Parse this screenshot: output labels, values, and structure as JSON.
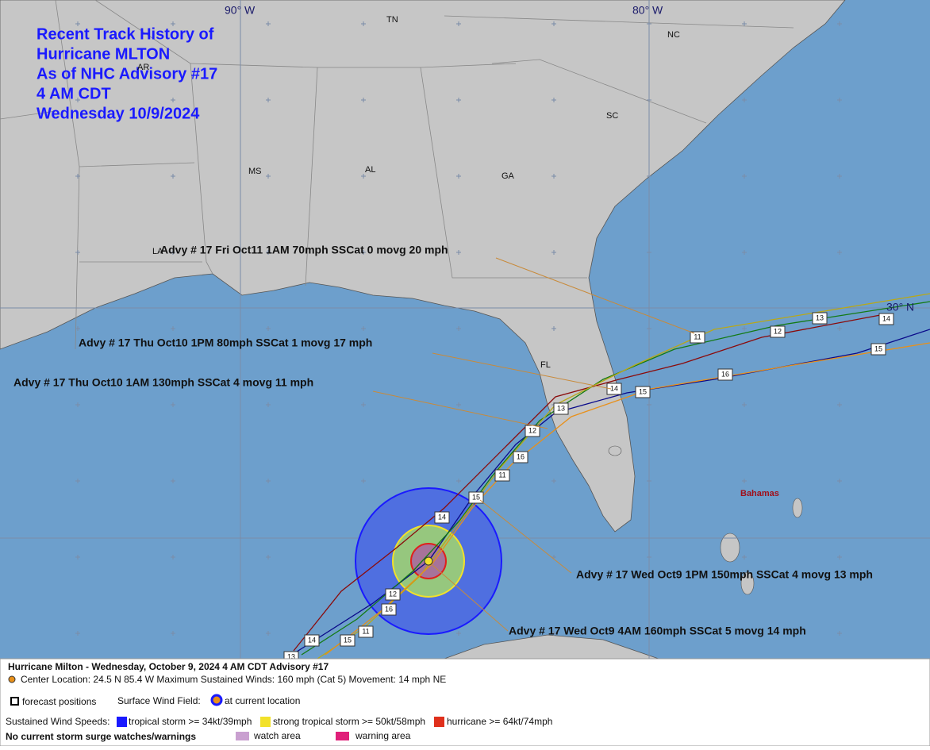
{
  "title": [
    "Recent Track History of",
    "Hurricane MLTON",
    "As of NHC Advisory #17",
    "4 AM CDT",
    "Wednesday 10/9/2024"
  ],
  "grid_labels": [
    "90° W",
    "80° W",
    "30° N"
  ],
  "states": [
    "TN",
    "NC",
    "AR",
    "SC",
    "MS",
    "AL",
    "GA",
    "LA",
    "FL"
  ],
  "places": [
    "Bahamas"
  ],
  "annotations": [
    "Advy # 17 Fri Oct11 1AM  70mph SSCat 0 movg 20 mph",
    "Advy # 17 Thu Oct10 1PM  80mph SSCat 1 movg 17 mph",
    "Advy # 17 Thu Oct10 1AM  130mph SSCat 4 movg 11 mph",
    "Advy # 17 Wed Oct9 1PM  150mph SSCat 4 movg 13 mph",
    "Advy # 17 Wed Oct9 4AM  160mph SSCat 5 movg 14 mph"
  ],
  "track_labels": [
    "11",
    "12",
    "13",
    "14",
    "15",
    "14",
    "12",
    "13",
    "14",
    "15",
    "16",
    "11",
    "16",
    "15",
    "12",
    "16",
    "11",
    "14",
    "15",
    "13"
  ],
  "legend": {
    "header": "Hurricane Milton  -  Wednesday, October 9, 2024  4 AM CDT   Advisory #17",
    "details": "Center Location: 24.5 N  85.4 W   Maximum Sustained Winds: 160 mph (Cat 5) Movement: 14 mph NE",
    "forecast": "forecast positions",
    "surface": "Surface Wind Field:",
    "current": "at current location",
    "speeds": "Sustained Wind Speeds:",
    "ts": "tropical storm >= 34kt/39mph",
    "sts": "strong tropical storm >= 50kt/58mph",
    "hu": "hurricane >= 64kt/74mph",
    "surge": "No current storm surge watches/warnings",
    "watch": "watch area",
    "warning": "warning area"
  }
}
